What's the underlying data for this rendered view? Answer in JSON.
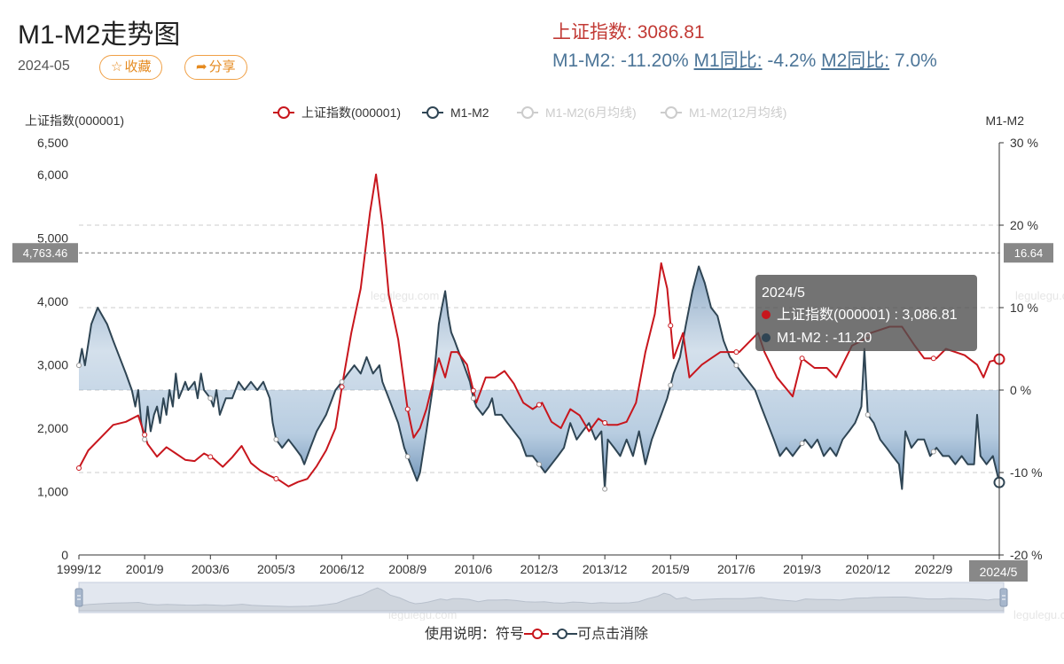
{
  "header": {
    "title": "M1-M2走势图",
    "date": "2024-05",
    "fav_label": "收藏",
    "share_label": "分享"
  },
  "summary": {
    "index_label": "上证指数:",
    "index_value": "3086.81",
    "m1m2_label": "M1-M2:",
    "m1m2_value": "-11.20%",
    "m1_label": "M1同比:",
    "m1_value": "-4.2%",
    "m2_label": "M2同比:",
    "m2_value": "7.0%"
  },
  "help_text": "使用说明：符号",
  "help_suffix": "可点击消除",
  "chart_data": {
    "type": "line",
    "title": "",
    "left_axis_title": "上证指数(000001)",
    "right_axis_title": "M1-M2",
    "y_left": {
      "min": 0,
      "max": 6500,
      "ticks": [
        0,
        1000,
        2000,
        3000,
        4000,
        5000,
        6000,
        6500
      ],
      "tick_labels": [
        "0",
        "1,000",
        "2,000",
        "3,000",
        "4,000",
        "5,000",
        "6,000",
        "6,500"
      ]
    },
    "y_right": {
      "min": -20,
      "max": 30,
      "ticks": [
        -20,
        -10,
        0,
        10,
        20,
        30
      ],
      "tick_labels": [
        "-20 %",
        "-10 %",
        "0 %",
        "10 %",
        "20 %",
        "30 %"
      ]
    },
    "x_tick_labels": [
      "1999/12",
      "2001/9",
      "2003/6",
      "2005/3",
      "2006/12",
      "2008/9",
      "2010/6",
      "2012/3",
      "2013/12",
      "2015/9",
      "2017/6",
      "2019/3",
      "2020/12",
      "2022/9",
      "2024/5"
    ],
    "legend": [
      {
        "name": "上证指数(000001)",
        "color": "#c8161d",
        "active": true
      },
      {
        "name": "M1-M2",
        "color": "#2f4554",
        "active": true
      },
      {
        "name": "M1-M2(6月均线)",
        "color": "#bbbbbb",
        "active": false
      },
      {
        "name": "M1-M2(12月均线)",
        "color": "#bbbbbb",
        "active": false
      }
    ],
    "legend_position": "top-center",
    "grid": "dashed-horizontal",
    "crosshair": {
      "left_value": "4,763.46",
      "right_value": "16.64",
      "x_value": "2024/5"
    },
    "tooltip": {
      "date": "2024/5",
      "rows": [
        {
          "label": "上证指数(000001) : 3,086.81",
          "color": "#c8161d"
        },
        {
          "label": "M1-M2 : -11.20",
          "color": "#2f4554"
        }
      ]
    },
    "watermark": "legulegu.com",
    "series": [
      {
        "name": "上证指数(000001)",
        "color": "#c8161d",
        "points": [
          [
            1999.92,
            1370
          ],
          [
            2000.17,
            1650
          ],
          [
            2000.5,
            1850
          ],
          [
            2000.83,
            2050
          ],
          [
            2001.17,
            2100
          ],
          [
            2001.5,
            2200
          ],
          [
            2001.75,
            1750
          ],
          [
            2002.0,
            1550
          ],
          [
            2002.25,
            1700
          ],
          [
            2002.5,
            1600
          ],
          [
            2002.75,
            1500
          ],
          [
            2003.0,
            1480
          ],
          [
            2003.25,
            1600
          ],
          [
            2003.5,
            1520
          ],
          [
            2003.75,
            1390
          ],
          [
            2004.0,
            1540
          ],
          [
            2004.25,
            1720
          ],
          [
            2004.5,
            1450
          ],
          [
            2004.75,
            1330
          ],
          [
            2005.0,
            1250
          ],
          [
            2005.25,
            1180
          ],
          [
            2005.5,
            1080
          ],
          [
            2005.75,
            1150
          ],
          [
            2006.0,
            1200
          ],
          [
            2006.25,
            1400
          ],
          [
            2006.5,
            1650
          ],
          [
            2006.75,
            2000
          ],
          [
            2006.92,
            2650
          ],
          [
            2007.17,
            3500
          ],
          [
            2007.42,
            4200
          ],
          [
            2007.67,
            5400
          ],
          [
            2007.83,
            6000
          ],
          [
            2008.0,
            5200
          ],
          [
            2008.17,
            4100
          ],
          [
            2008.42,
            3400
          ],
          [
            2008.67,
            2300
          ],
          [
            2008.83,
            1850
          ],
          [
            2009.0,
            2000
          ],
          [
            2009.17,
            2300
          ],
          [
            2009.5,
            3100
          ],
          [
            2009.67,
            2800
          ],
          [
            2009.83,
            3200
          ],
          [
            2010.0,
            3200
          ],
          [
            2010.25,
            3000
          ],
          [
            2010.5,
            2400
          ],
          [
            2010.75,
            2800
          ],
          [
            2011.0,
            2800
          ],
          [
            2011.25,
            2900
          ],
          [
            2011.5,
            2700
          ],
          [
            2011.75,
            2400
          ],
          [
            2012.0,
            2300
          ],
          [
            2012.25,
            2400
          ],
          [
            2012.5,
            2100
          ],
          [
            2012.75,
            2000
          ],
          [
            2013.0,
            2300
          ],
          [
            2013.25,
            2200
          ],
          [
            2013.5,
            1950
          ],
          [
            2013.75,
            2150
          ],
          [
            2014.0,
            2050
          ],
          [
            2014.25,
            2050
          ],
          [
            2014.5,
            2100
          ],
          [
            2014.75,
            2400
          ],
          [
            2015.0,
            3200
          ],
          [
            2015.25,
            3800
          ],
          [
            2015.42,
            4600
          ],
          [
            2015.58,
            4200
          ],
          [
            2015.75,
            3100
          ],
          [
            2016.0,
            3500
          ],
          [
            2016.17,
            2800
          ],
          [
            2016.5,
            3000
          ],
          [
            2016.75,
            3100
          ],
          [
            2017.0,
            3200
          ],
          [
            2017.25,
            3200
          ],
          [
            2017.5,
            3200
          ],
          [
            2017.83,
            3400
          ],
          [
            2018.0,
            3500
          ],
          [
            2018.17,
            3200
          ],
          [
            2018.5,
            2800
          ],
          [
            2018.92,
            2500
          ],
          [
            2019.17,
            3100
          ],
          [
            2019.5,
            2950
          ],
          [
            2019.83,
            2950
          ],
          [
            2020.08,
            2800
          ],
          [
            2020.5,
            3300
          ],
          [
            2020.83,
            3400
          ],
          [
            2021.0,
            3500
          ],
          [
            2021.5,
            3600
          ],
          [
            2021.83,
            3600
          ],
          [
            2022.17,
            3300
          ],
          [
            2022.42,
            3100
          ],
          [
            2022.75,
            3100
          ],
          [
            2023.0,
            3250
          ],
          [
            2023.5,
            3150
          ],
          [
            2023.83,
            3000
          ],
          [
            2024.0,
            2800
          ],
          [
            2024.17,
            3050
          ],
          [
            2024.42,
            3086.81
          ]
        ]
      },
      {
        "name": "M1-M2",
        "color": "#2f4554",
        "points": [
          [
            1999.92,
            3
          ],
          [
            2000.0,
            5
          ],
          [
            2000.08,
            3
          ],
          [
            2000.25,
            8
          ],
          [
            2000.42,
            10
          ],
          [
            2000.67,
            8
          ],
          [
            2000.83,
            6
          ],
          [
            2001.0,
            4
          ],
          [
            2001.17,
            2
          ],
          [
            2001.33,
            0
          ],
          [
            2001.42,
            -2
          ],
          [
            2001.5,
            0
          ],
          [
            2001.58,
            -4
          ],
          [
            2001.67,
            -6
          ],
          [
            2001.75,
            -2
          ],
          [
            2001.83,
            -5
          ],
          [
            2001.92,
            -3
          ],
          [
            2002.0,
            -2
          ],
          [
            2002.08,
            -4
          ],
          [
            2002.17,
            -1
          ],
          [
            2002.25,
            -3
          ],
          [
            2002.33,
            0
          ],
          [
            2002.42,
            -2
          ],
          [
            2002.5,
            2
          ],
          [
            2002.58,
            -1
          ],
          [
            2002.67,
            0
          ],
          [
            2002.75,
            1
          ],
          [
            2002.83,
            0
          ],
          [
            2003.0,
            1
          ],
          [
            2003.08,
            -1
          ],
          [
            2003.17,
            2
          ],
          [
            2003.25,
            0
          ],
          [
            2003.42,
            -1
          ],
          [
            2003.5,
            -2
          ],
          [
            2003.58,
            0
          ],
          [
            2003.67,
            -3
          ],
          [
            2003.83,
            -1
          ],
          [
            2004.0,
            -1
          ],
          [
            2004.17,
            1
          ],
          [
            2004.33,
            0
          ],
          [
            2004.5,
            1
          ],
          [
            2004.67,
            0
          ],
          [
            2004.83,
            1
          ],
          [
            2005.0,
            -1
          ],
          [
            2005.08,
            -4
          ],
          [
            2005.17,
            -6
          ],
          [
            2005.33,
            -7
          ],
          [
            2005.5,
            -6
          ],
          [
            2005.67,
            -7
          ],
          [
            2005.83,
            -8
          ],
          [
            2005.92,
            -9
          ],
          [
            2006.08,
            -7
          ],
          [
            2006.25,
            -5
          ],
          [
            2006.5,
            -3
          ],
          [
            2006.75,
            0
          ],
          [
            2006.92,
            1
          ],
          [
            2007.08,
            2
          ],
          [
            2007.25,
            3
          ],
          [
            2007.42,
            2
          ],
          [
            2007.58,
            4
          ],
          [
            2007.75,
            2
          ],
          [
            2007.92,
            3
          ],
          [
            2008.0,
            1
          ],
          [
            2008.17,
            -1
          ],
          [
            2008.42,
            -4
          ],
          [
            2008.58,
            -7
          ],
          [
            2008.75,
            -9
          ],
          [
            2008.92,
            -11
          ],
          [
            2009.0,
            -10
          ],
          [
            2009.17,
            -5
          ],
          [
            2009.33,
            0
          ],
          [
            2009.42,
            4
          ],
          [
            2009.5,
            8
          ],
          [
            2009.58,
            10
          ],
          [
            2009.67,
            12
          ],
          [
            2009.75,
            9
          ],
          [
            2009.83,
            7
          ],
          [
            2009.92,
            6
          ],
          [
            2010.0,
            5
          ],
          [
            2010.17,
            3
          ],
          [
            2010.33,
            1
          ],
          [
            2010.42,
            -1
          ],
          [
            2010.5,
            -2
          ],
          [
            2010.67,
            -3
          ],
          [
            2010.83,
            -2
          ],
          [
            2010.92,
            -1
          ],
          [
            2011.0,
            -3
          ],
          [
            2011.17,
            -3
          ],
          [
            2011.33,
            -4
          ],
          [
            2011.5,
            -5
          ],
          [
            2011.67,
            -6
          ],
          [
            2011.83,
            -8
          ],
          [
            2012.0,
            -8
          ],
          [
            2012.17,
            -9
          ],
          [
            2012.33,
            -10
          ],
          [
            2012.5,
            -9
          ],
          [
            2012.67,
            -8
          ],
          [
            2012.83,
            -7
          ],
          [
            2013.0,
            -4
          ],
          [
            2013.17,
            -6
          ],
          [
            2013.33,
            -5
          ],
          [
            2013.5,
            -4
          ],
          [
            2013.67,
            -6
          ],
          [
            2013.83,
            -5
          ],
          [
            2013.92,
            -12
          ],
          [
            2014.0,
            -6
          ],
          [
            2014.17,
            -7
          ],
          [
            2014.33,
            -8
          ],
          [
            2014.5,
            -6
          ],
          [
            2014.67,
            -8
          ],
          [
            2014.83,
            -5
          ],
          [
            2015.0,
            -9
          ],
          [
            2015.17,
            -6
          ],
          [
            2015.42,
            -3
          ],
          [
            2015.58,
            -1
          ],
          [
            2015.75,
            2
          ],
          [
            2015.92,
            4
          ],
          [
            2016.08,
            8
          ],
          [
            2016.25,
            12
          ],
          [
            2016.42,
            15
          ],
          [
            2016.58,
            13
          ],
          [
            2016.75,
            10
          ],
          [
            2016.92,
            9
          ],
          [
            2017.08,
            6
          ],
          [
            2017.25,
            4
          ],
          [
            2017.42,
            3
          ],
          [
            2017.58,
            2
          ],
          [
            2017.75,
            1
          ],
          [
            2017.92,
            0
          ],
          [
            2018.0,
            -1
          ],
          [
            2018.08,
            -2
          ],
          [
            2018.25,
            -4
          ],
          [
            2018.42,
            -6
          ],
          [
            2018.58,
            -8
          ],
          [
            2018.75,
            -7
          ],
          [
            2018.92,
            -8
          ],
          [
            2019.08,
            -7
          ],
          [
            2019.25,
            -6
          ],
          [
            2019.42,
            -7
          ],
          [
            2019.58,
            -6
          ],
          [
            2019.75,
            -8
          ],
          [
            2019.92,
            -7
          ],
          [
            2020.08,
            -8
          ],
          [
            2020.25,
            -6
          ],
          [
            2020.42,
            -5
          ],
          [
            2020.58,
            -4
          ],
          [
            2020.67,
            -3
          ],
          [
            2020.75,
            -2
          ],
          [
            2020.83,
            5
          ],
          [
            2020.92,
            -3
          ],
          [
            2021.08,
            -4
          ],
          [
            2021.25,
            -6
          ],
          [
            2021.42,
            -7
          ],
          [
            2021.58,
            -8
          ],
          [
            2021.75,
            -9
          ],
          [
            2021.83,
            -12
          ],
          [
            2021.92,
            -5
          ],
          [
            2022.08,
            -7
          ],
          [
            2022.25,
            -6
          ],
          [
            2022.42,
            -6
          ],
          [
            2022.58,
            -8
          ],
          [
            2022.75,
            -7
          ],
          [
            2022.92,
            -8
          ],
          [
            2023.08,
            -8
          ],
          [
            2023.25,
            -9
          ],
          [
            2023.42,
            -8
          ],
          [
            2023.58,
            -9
          ],
          [
            2023.75,
            -9
          ],
          [
            2023.83,
            -3
          ],
          [
            2023.92,
            -8
          ],
          [
            2024.08,
            -9
          ],
          [
            2024.25,
            -8
          ],
          [
            2024.42,
            -11.2
          ]
        ]
      }
    ]
  }
}
